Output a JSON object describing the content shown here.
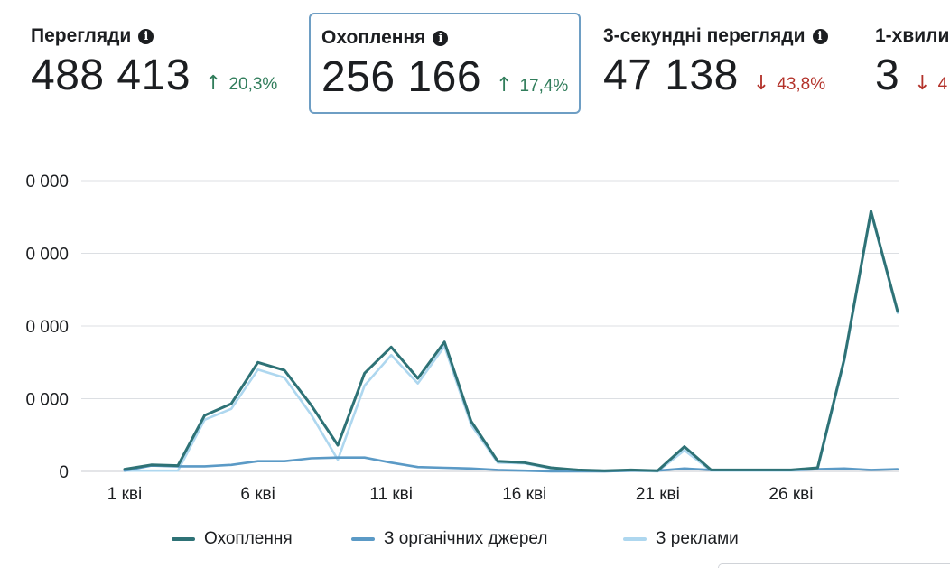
{
  "metrics": [
    {
      "title": "Перегляди",
      "value": "488 413",
      "delta": "20,3%",
      "direction": "up",
      "selected": false
    },
    {
      "title": "Охоплення",
      "value": "256 166",
      "delta": "17,4%",
      "direction": "up",
      "selected": true
    },
    {
      "title": "3-секундні перегляди",
      "value": "47 138",
      "delta": "43,8%",
      "direction": "down",
      "selected": false
    },
    {
      "title": "1-хвили",
      "value": "3",
      "delta": "4",
      "direction": "down",
      "selected": false
    }
  ],
  "icons": {
    "info": "info-icon",
    "up": "arrow-up-icon",
    "down": "arrow-down-icon"
  },
  "colors": {
    "accent_selected": "#6e9ec4",
    "up": "#317d5b",
    "down": "#b3322a"
  },
  "chart_data": {
    "type": "line",
    "x_tick_labels": [
      "1 кві",
      "6 кві",
      "11 кві",
      "16 кві",
      "21 кві",
      "26 кві"
    ],
    "y_tick_labels": [
      "0",
      "0 000",
      "0 000",
      "0 000",
      "0 000"
    ],
    "ylim": [
      0,
      40000
    ],
    "grid": true,
    "legend_position": "bottom",
    "x": [
      1,
      2,
      3,
      4,
      5,
      6,
      7,
      8,
      9,
      10,
      11,
      12,
      13,
      14,
      15,
      16,
      17,
      18,
      19,
      20,
      21,
      22,
      23,
      24,
      25,
      26,
      27,
      28,
      29,
      30
    ],
    "series": [
      {
        "name": "Охоплення",
        "color": "#2e7276",
        "values": [
          300,
          900,
          800,
          7700,
          9300,
          15000,
          13900,
          9100,
          3600,
          13500,
          17100,
          12800,
          17800,
          6900,
          1400,
          1200,
          500,
          200,
          100,
          200,
          100,
          3400,
          200,
          200,
          200,
          200,
          500,
          15500,
          35800,
          22000
        ]
      },
      {
        "name": "З органічних джерел",
        "color": "#5b9ac6",
        "values": [
          100,
          800,
          700,
          700,
          900,
          1400,
          1400,
          1800,
          1900,
          1900,
          1200,
          600,
          500,
          400,
          200,
          100,
          0,
          0,
          0,
          100,
          100,
          400,
          200,
          200,
          200,
          200,
          300,
          400,
          200,
          300
        ]
      },
      {
        "name": "З реклами",
        "color": "#aed7ef",
        "values": [
          100,
          100,
          100,
          7100,
          8600,
          14000,
          12900,
          7800,
          1600,
          11800,
          16000,
          12100,
          17200,
          6400,
          1200,
          1100,
          400,
          100,
          0,
          100,
          0,
          2900,
          100,
          100,
          100,
          100,
          300,
          15200,
          35600,
          21800
        ]
      }
    ]
  }
}
